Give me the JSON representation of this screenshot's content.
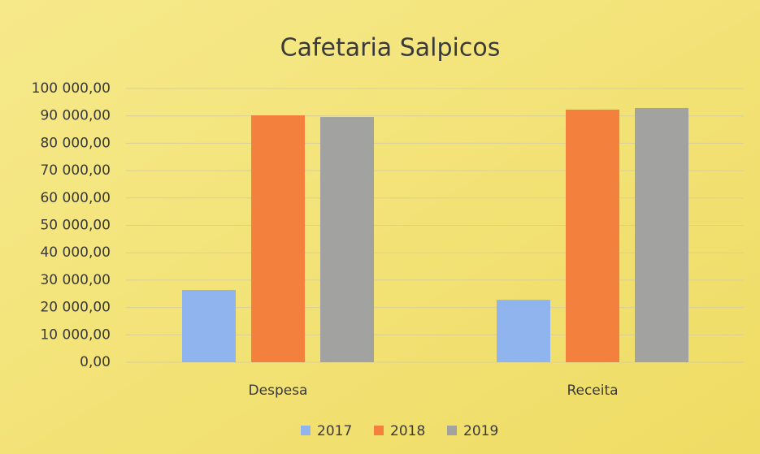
{
  "chart_data": {
    "type": "bar",
    "title": "Cafetaria Salpicos",
    "categories": [
      "Despesa",
      "Receita"
    ],
    "series": [
      {
        "name": "2017",
        "color": "#8fb4ee",
        "values": [
          26400,
          22800
        ]
      },
      {
        "name": "2018",
        "color": "#f4803e",
        "values": [
          90200,
          92300
        ]
      },
      {
        "name": "2019",
        "color": "#a2a2a0",
        "values": [
          89600,
          92900
        ]
      }
    ],
    "ylim": [
      0,
      100000
    ],
    "yticks": [
      {
        "value": 0,
        "label": "0,00"
      },
      {
        "value": 10000,
        "label": "10 000,00"
      },
      {
        "value": 20000,
        "label": "20 000,00"
      },
      {
        "value": 30000,
        "label": "30 000,00"
      },
      {
        "value": 40000,
        "label": "40 000,00"
      },
      {
        "value": 50000,
        "label": "50 000,00"
      },
      {
        "value": 60000,
        "label": "60 000,00"
      },
      {
        "value": 70000,
        "label": "70 000,00"
      },
      {
        "value": 80000,
        "label": "80 000,00"
      },
      {
        "value": 90000,
        "label": "90 000,00"
      },
      {
        "value": 100000,
        "label": "100 000,00"
      }
    ],
    "grid": true,
    "legend": "bottom"
  }
}
